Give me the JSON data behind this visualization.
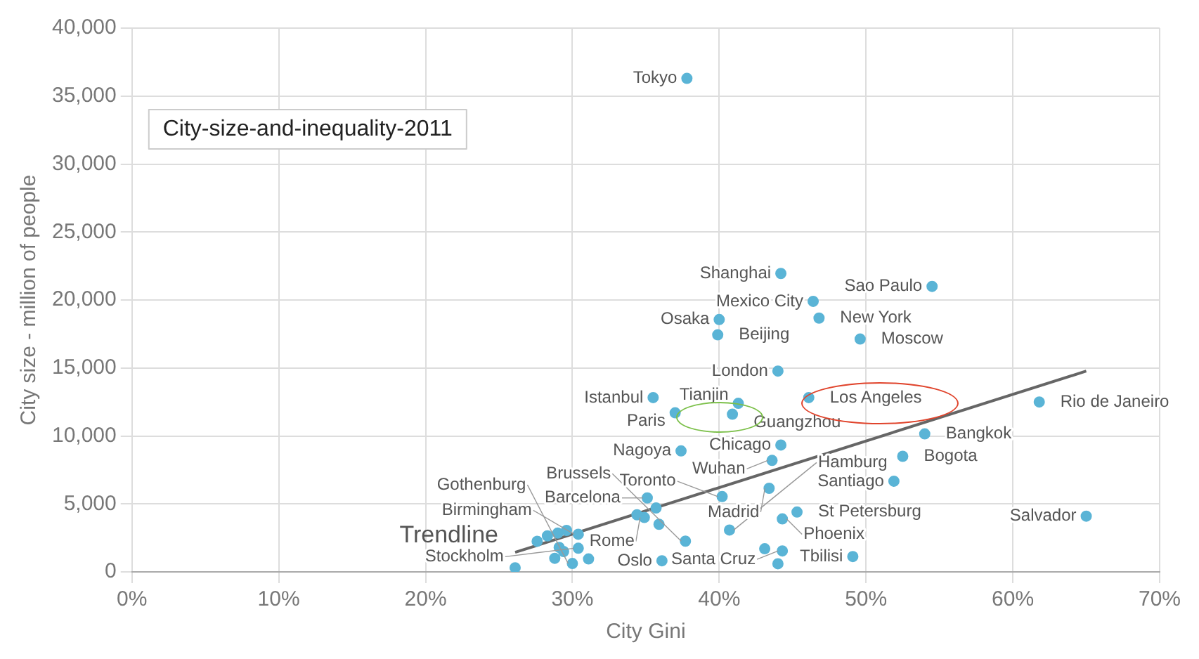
{
  "chart_data": {
    "type": "scatter",
    "title": "City-size-and-inequality-2011",
    "xlabel": "City Gini",
    "ylabel": "City size - million of people",
    "x": [
      37.8,
      44.2,
      54.5,
      46.4,
      40.0,
      46.8,
      39.9,
      49.6,
      44.0,
      35.5,
      41.3,
      46.1,
      37.0,
      40.9,
      61.8,
      54.0,
      52.5,
      51.9,
      65.0,
      37.4,
      44.2,
      43.6,
      43.4,
      40.2,
      35.1,
      34.9,
      45.3,
      44.3,
      40.7,
      37.7,
      30.4,
      30.4,
      30.0,
      36.1,
      44.3,
      49.1,
      26.1,
      27.6,
      28.3,
      29.0,
      29.6,
      29.1,
      31.1,
      28.8,
      29.4,
      35.7,
      34.4,
      35.9,
      43.1,
      44.0
    ],
    "series": [
      {
        "color": "#5ab4d6",
        "values": [
          36300,
          21950,
          21000,
          19900,
          18560,
          18670,
          17440,
          17130,
          14770,
          12820,
          12400,
          12820,
          11700,
          11600,
          12500,
          10150,
          8500,
          6670,
          4100,
          8900,
          9330,
          8200,
          6150,
          5540,
          5440,
          4000,
          4400,
          3900,
          3080,
          2260,
          2770,
          1740,
          615,
          820,
          1540,
          1130,
          300,
          2250,
          2650,
          2850,
          3050,
          1800,
          950,
          1000,
          1500,
          4700,
          4200,
          3500,
          1700,
          600
        ]
      },
      {
        "type": "line",
        "name": "Trendline",
        "color": "#666666",
        "marker": "none",
        "x": [
          26.1,
          65.0
        ],
        "values": [
          1440,
          14770
        ]
      }
    ],
    "annotations": [
      {
        "text": "Tokyo",
        "x": 37.8,
        "y": 36300
      },
      {
        "text": "Shanghai",
        "x": 44.2,
        "y": 21950
      },
      {
        "text": "Sao Paulo",
        "x": 54.5,
        "y": 21000
      },
      {
        "text": "Mexico City",
        "x": 46.4,
        "y": 19900
      },
      {
        "text": "Osaka",
        "x": 40.0,
        "y": 18560
      },
      {
        "text": "New York",
        "x": 46.8,
        "y": 18670
      },
      {
        "text": "Beijing",
        "x": 39.9,
        "y": 17440
      },
      {
        "text": "Moscow",
        "x": 49.6,
        "y": 17130
      },
      {
        "text": "London",
        "x": 44.0,
        "y": 14770
      },
      {
        "text": "Istanbul",
        "x": 35.5,
        "y": 12820
      },
      {
        "text": "Tianjin",
        "x": 41.3,
        "y": 12400
      },
      {
        "text": "Los Angeles",
        "x": 46.1,
        "y": 12820
      },
      {
        "text": "Paris",
        "x": 37.0,
        "y": 11700
      },
      {
        "text": "Guangzhou",
        "x": 40.9,
        "y": 11600
      },
      {
        "text": "Rio de Janeiro",
        "x": 61.8,
        "y": 12500
      },
      {
        "text": "Bangkok",
        "x": 54.0,
        "y": 10150
      },
      {
        "text": "Bogota",
        "x": 52.5,
        "y": 8500
      },
      {
        "text": "Santiago",
        "x": 51.9,
        "y": 6670
      },
      {
        "text": "Salvador",
        "x": 65.0,
        "y": 4100
      },
      {
        "text": "Nagoya",
        "x": 37.4,
        "y": 8900
      },
      {
        "text": "Chicago",
        "x": 44.2,
        "y": 9330
      },
      {
        "text": "Wuhan",
        "x": 43.6,
        "y": 8200
      },
      {
        "text": "Madrid",
        "x": 43.4,
        "y": 6150
      },
      {
        "text": "Toronto",
        "x": 40.2,
        "y": 5540
      },
      {
        "text": "Barcelona",
        "x": 35.1,
        "y": 5440
      },
      {
        "text": "Rome",
        "x": 34.9,
        "y": 4000
      },
      {
        "text": "St Petersburg",
        "x": 45.3,
        "y": 4400
      },
      {
        "text": "Phoenix",
        "x": 44.3,
        "y": 3900
      },
      {
        "text": "Hamburg",
        "x": 40.7,
        "y": 3080
      },
      {
        "text": "Brussels",
        "x": 37.7,
        "y": 2260
      },
      {
        "text": "Birmingham",
        "x": 30.4,
        "y": 2770
      },
      {
        "text": "Stockholm",
        "x": 30.4,
        "y": 1740
      },
      {
        "text": "Gothenburg",
        "x": 30.0,
        "y": 615
      },
      {
        "text": "Oslo",
        "x": 36.1,
        "y": 820
      },
      {
        "text": "Santa Cruz",
        "x": 44.3,
        "y": 1540
      },
      {
        "text": "Tbilisi",
        "x": 49.1,
        "y": 1130
      }
    ],
    "xlim": [
      0,
      70
    ],
    "xticks": [
      {
        "value": 0,
        "label": "0%"
      },
      {
        "value": 10,
        "label": "10%"
      },
      {
        "value": 20,
        "label": "20%"
      },
      {
        "value": 30,
        "label": "30%"
      },
      {
        "value": 40,
        "label": "40%"
      },
      {
        "value": 50,
        "label": "50%"
      },
      {
        "value": 60,
        "label": "60%"
      },
      {
        "value": 70,
        "label": "70%"
      }
    ],
    "ylim": [
      0,
      40000
    ],
    "yticks": [
      0,
      {
        "value": 5000,
        "label": "5,000"
      },
      {
        "value": 10000,
        "label": "10,000"
      },
      {
        "value": 15000,
        "label": "15,000"
      },
      {
        "value": 20000,
        "label": "20,000"
      },
      {
        "value": 25000,
        "label": "25,000"
      },
      {
        "value": 30000,
        "label": "30,000"
      },
      {
        "value": 35000,
        "label": "35,000"
      },
      {
        "value": 40000,
        "label": "40,000"
      }
    ],
    "grid": true,
    "legend": false,
    "marker": "circle"
  }
}
